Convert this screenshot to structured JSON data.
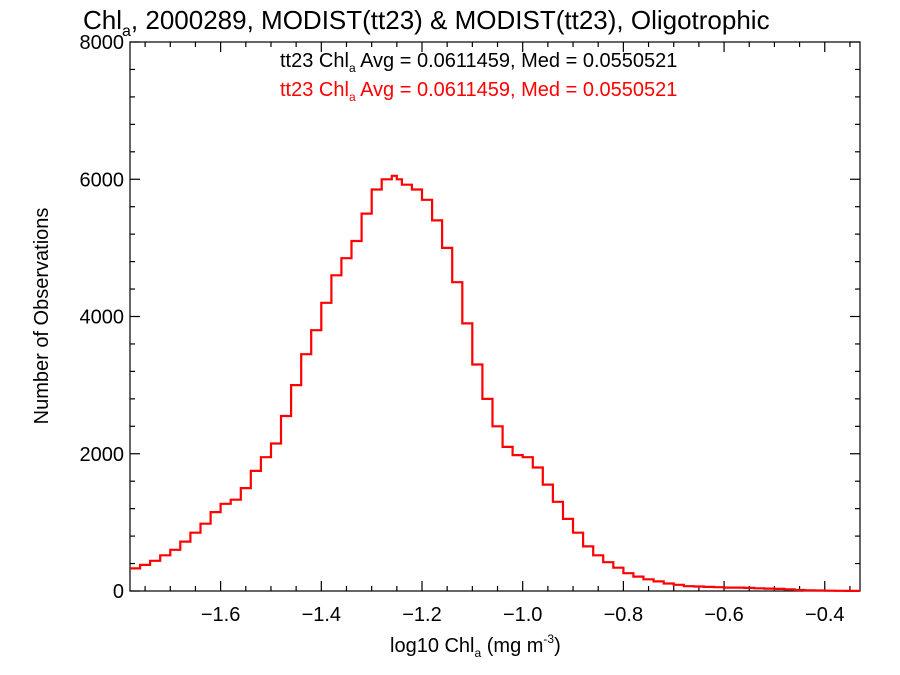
{
  "chart_data": {
    "type": "line",
    "title": {
      "pre": "Chl",
      "sub": "a",
      "post": ", 2000289, MODIST(tt23) & MODIST(tt23), Oligotrophic"
    },
    "xlabel": {
      "pre": "log10 Chl",
      "sub": "a",
      "mid": " (mg m",
      "sup": "-3",
      "post": ")"
    },
    "ylabel": "Number of Observations",
    "xlim": [
      -1.78,
      -0.33
    ],
    "ylim": [
      0,
      8000
    ],
    "xticks": [
      -1.6,
      -1.4,
      -1.2,
      -1.0,
      -0.8,
      -0.6,
      -0.4
    ],
    "xtick_labels": [
      "−1.6",
      "−1.4",
      "−1.2",
      "−1.0",
      "−0.8",
      "−0.6",
      "−0.4"
    ],
    "yticks": [
      0,
      2000,
      4000,
      6000,
      8000
    ],
    "ytick_labels": [
      "0",
      "2000",
      "4000",
      "6000",
      "8000"
    ],
    "colors": {
      "black": "#000000",
      "red": "#ff0000"
    },
    "annotations": [
      {
        "pre": "tt23 Chl",
        "sub": "a",
        "post": " Avg = 0.0611459, Med = 0.0550521",
        "color": "#000000"
      },
      {
        "pre": "tt23 Chl",
        "sub": "a",
        "post": " Avg = 0.0611459, Med = 0.0550521",
        "color": "#ff0000"
      }
    ],
    "series": [
      {
        "color": "#ff0000",
        "draw": "step",
        "x": [
          -1.78,
          -1.76,
          -1.74,
          -1.72,
          -1.7,
          -1.68,
          -1.66,
          -1.64,
          -1.62,
          -1.6,
          -1.58,
          -1.56,
          -1.54,
          -1.52,
          -1.5,
          -1.48,
          -1.46,
          -1.44,
          -1.42,
          -1.4,
          -1.38,
          -1.36,
          -1.34,
          -1.32,
          -1.3,
          -1.28,
          -1.26,
          -1.25,
          -1.24,
          -1.22,
          -1.2,
          -1.18,
          -1.16,
          -1.14,
          -1.12,
          -1.1,
          -1.08,
          -1.06,
          -1.04,
          -1.02,
          -1.0,
          -0.98,
          -0.96,
          -0.94,
          -0.92,
          -0.9,
          -0.88,
          -0.86,
          -0.84,
          -0.82,
          -0.8,
          -0.78,
          -0.76,
          -0.74,
          -0.72,
          -0.7,
          -0.68,
          -0.66,
          -0.64,
          -0.62,
          -0.6,
          -0.58,
          -0.56,
          -0.54,
          -0.52,
          -0.5,
          -0.48,
          -0.46,
          -0.44,
          -0.42,
          -0.4,
          -0.38,
          -0.36,
          -0.34
        ],
        "y": [
          330,
          380,
          440,
          520,
          600,
          720,
          850,
          980,
          1150,
          1270,
          1330,
          1500,
          1750,
          1950,
          2150,
          2550,
          3000,
          3450,
          3800,
          4200,
          4600,
          4850,
          5100,
          5500,
          5850,
          6000,
          6050,
          6000,
          5920,
          5850,
          5700,
          5400,
          5000,
          4500,
          3900,
          3300,
          2800,
          2400,
          2100,
          1980,
          1950,
          1800,
          1550,
          1300,
          1050,
          850,
          650,
          520,
          420,
          340,
          260,
          210,
          170,
          140,
          110,
          90,
          70,
          65,
          60,
          55,
          50,
          50,
          45,
          40,
          35,
          30,
          25,
          15,
          10,
          8,
          5,
          3,
          2,
          1
        ]
      }
    ]
  }
}
